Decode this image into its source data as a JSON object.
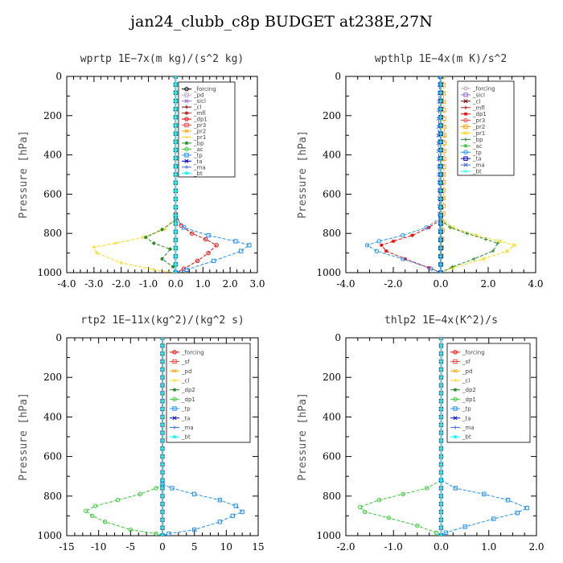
{
  "title": "jan24_clubb_c8p  BUDGET at238E,27N",
  "chart_data": [
    {
      "type": "line",
      "title": "wprtp  1E−7x(m kg)/(s^2 kg)",
      "ylabel": "Pressure [hPa]",
      "xlim": [
        -4.0,
        3.0
      ],
      "ylim": [
        0,
        1000
      ],
      "y_inverted": true,
      "xticks": [
        "-4.0",
        "-3.0",
        "-2.0",
        "-1.0",
        "0.0",
        "1.0",
        "2.0",
        "3.0"
      ],
      "yticks": [
        "0",
        "200",
        "400",
        "600",
        "800",
        "1000"
      ],
      "legend_position": "top-right",
      "series": [
        {
          "name": "_forcing",
          "color": "#000000",
          "marker": "o",
          "x": [
            0,
            0
          ],
          "y": [
            0,
            1000
          ]
        },
        {
          "name": "_pd",
          "color": "#c8a2c8",
          "marker": "s",
          "x": [
            0,
            0
          ],
          "y": [
            0,
            1000
          ]
        },
        {
          "name": "_sicl",
          "color": "#9370db",
          "marker": "x",
          "x": [
            0,
            0
          ],
          "y": [
            0,
            1000
          ]
        },
        {
          "name": "_cl",
          "color": "#800000",
          "marker": "+",
          "x": [
            0,
            0
          ],
          "y": [
            0,
            1000
          ]
        },
        {
          "name": "_mfl",
          "color": "#b22222",
          "marker": "*",
          "x": [
            0,
            0
          ],
          "y": [
            0,
            1000
          ]
        },
        {
          "name": "_dp1",
          "color": "#ff0000",
          "marker": "o",
          "x": [
            0,
            0.2,
            0.6,
            1.1,
            1.5,
            1.2,
            0.8,
            0.3,
            0
          ],
          "y": [
            700,
            760,
            800,
            830,
            860,
            900,
            940,
            980,
            1000
          ]
        },
        {
          "name": "_pr3",
          "color": "#ff4040",
          "marker": "s",
          "x": [
            0,
            0
          ],
          "y": [
            0,
            1000
          ]
        },
        {
          "name": "_pr2",
          "color": "#ffa500",
          "marker": "x",
          "x": [
            0,
            0
          ],
          "y": [
            0,
            1000
          ]
        },
        {
          "name": "_pr1",
          "color": "#ffd700",
          "marker": "+",
          "x": [
            0,
            -0.4,
            -1.2,
            -2.2,
            -3.0,
            -2.9,
            -2.0,
            -0.8,
            0
          ],
          "y": [
            720,
            780,
            820,
            850,
            870,
            900,
            950,
            985,
            1000
          ]
        },
        {
          "name": "_bp",
          "color": "#228b22",
          "marker": "*",
          "x": [
            0,
            -0.5,
            -1.1,
            -0.8,
            -0.2,
            -0.5,
            -0.1,
            0
          ],
          "y": [
            730,
            780,
            820,
            850,
            880,
            930,
            970,
            1000
          ]
        },
        {
          "name": "_ac",
          "color": "#32cd32",
          "marker": "o",
          "x": [
            0,
            0
          ],
          "y": [
            0,
            1000
          ]
        },
        {
          "name": "_tp",
          "color": "#1e90ff",
          "marker": "s",
          "x": [
            0,
            0.3,
            1.2,
            2.2,
            2.7,
            2.4,
            1.4,
            0.4,
            0
          ],
          "y": [
            720,
            770,
            810,
            840,
            860,
            890,
            940,
            985,
            1000
          ]
        },
        {
          "name": "_ta",
          "color": "#0000cd",
          "marker": "x",
          "x": [
            0,
            0
          ],
          "y": [
            0,
            1000
          ]
        },
        {
          "name": "_ma",
          "color": "#4169e1",
          "marker": "+",
          "x": [
            0,
            0
          ],
          "y": [
            0,
            1000
          ]
        },
        {
          "name": "_bt",
          "color": "#00ffff",
          "marker": "*",
          "x": [
            0,
            0
          ],
          "y": [
            0,
            1000
          ]
        }
      ]
    },
    {
      "type": "line",
      "title": "wpthlp  1E−4x(m K)/s^2",
      "ylabel": "Pressure [hPa]",
      "xlim": [
        -4.0,
        4.0
      ],
      "ylim": [
        0,
        1000
      ],
      "y_inverted": true,
      "xticks": [
        "-4.0",
        "-2.0",
        "0.0",
        "2.0",
        "4.0"
      ],
      "yticks": [
        "0",
        "200",
        "400",
        "600",
        "800",
        "1000"
      ],
      "legend_position": "top-right",
      "series": [
        {
          "name": "_forcing",
          "color": "#c8a2c8",
          "marker": "o",
          "x": [
            0,
            0
          ],
          "y": [
            0,
            1000
          ]
        },
        {
          "name": "_sicl",
          "color": "#9370db",
          "marker": "s",
          "x": [
            0,
            0
          ],
          "y": [
            0,
            1000
          ]
        },
        {
          "name": "_cl",
          "color": "#800000",
          "marker": "x",
          "x": [
            0,
            0
          ],
          "y": [
            0,
            1000
          ]
        },
        {
          "name": "_mfl",
          "color": "#b22222",
          "marker": "+",
          "x": [
            0,
            0
          ],
          "y": [
            0,
            1000
          ]
        },
        {
          "name": "_dp1",
          "color": "#ff0000",
          "marker": "*",
          "x": [
            0,
            -0.5,
            -1.2,
            -2.0,
            -2.5,
            -2.3,
            -1.5,
            -0.5,
            0
          ],
          "y": [
            730,
            770,
            810,
            840,
            860,
            890,
            930,
            975,
            1000
          ]
        },
        {
          "name": "_pr3",
          "color": "#ff4040",
          "marker": "o",
          "x": [
            0,
            0
          ],
          "y": [
            0,
            1000
          ]
        },
        {
          "name": "_pr2",
          "color": "#ffa500",
          "marker": "s",
          "x": [
            0.1,
            0.15,
            0.1,
            0
          ],
          "y": [
            0,
            300,
            700,
            1000
          ]
        },
        {
          "name": "_pr1",
          "color": "#ffd700",
          "marker": "x",
          "x": [
            0,
            0.5,
            1.5,
            2.5,
            3.1,
            2.8,
            1.8,
            0.5,
            0
          ],
          "y": [
            720,
            770,
            810,
            840,
            860,
            890,
            930,
            975,
            1000
          ]
        },
        {
          "name": "_bp",
          "color": "#228b22",
          "marker": "+",
          "x": [
            0,
            0.4,
            1.1,
            1.9,
            2.4,
            2.2,
            1.4,
            0.5,
            0
          ],
          "y": [
            730,
            770,
            800,
            830,
            850,
            890,
            930,
            970,
            1000
          ]
        },
        {
          "name": "_ac",
          "color": "#32cd32",
          "marker": "*",
          "x": [
            0,
            0
          ],
          "y": [
            0,
            1000
          ]
        },
        {
          "name": "_tp",
          "color": "#1e90ff",
          "marker": "o",
          "x": [
            0,
            -0.6,
            -1.6,
            -2.6,
            -3.1,
            -2.7,
            -1.6,
            -0.4,
            0
          ],
          "y": [
            720,
            770,
            810,
            840,
            860,
            890,
            930,
            980,
            1000
          ]
        },
        {
          "name": "_ta",
          "color": "#0000cd",
          "marker": "s",
          "x": [
            0,
            0
          ],
          "y": [
            0,
            1000
          ]
        },
        {
          "name": "_ma",
          "color": "#4169e1",
          "marker": "x",
          "x": [
            -0.05,
            -0.1,
            -0.05,
            0
          ],
          "y": [
            0,
            300,
            700,
            1000
          ]
        },
        {
          "name": "_bt",
          "color": "#00ffff",
          "marker": "+",
          "x": [
            0,
            0
          ],
          "y": [
            0,
            1000
          ]
        }
      ]
    },
    {
      "type": "line",
      "title": "rtp2  1E−11x(kg^2)/(kg^2 s)",
      "ylabel": "Pressure [hPa]",
      "xlim": [
        -15,
        15
      ],
      "ylim": [
        0,
        1000
      ],
      "y_inverted": true,
      "xticks": [
        "-15",
        "-10",
        "-5",
        "0",
        "5",
        "10",
        "15"
      ],
      "yticks": [
        "0",
        "200",
        "400",
        "600",
        "800",
        "1000"
      ],
      "legend_position": "top-right",
      "series": [
        {
          "name": "_forcing",
          "color": "#ff0000",
          "marker": "o",
          "x": [
            0,
            0
          ],
          "y": [
            0,
            1000
          ]
        },
        {
          "name": "_sf",
          "color": "#ff4040",
          "marker": "s",
          "x": [
            0,
            0
          ],
          "y": [
            0,
            1000
          ]
        },
        {
          "name": "_pd",
          "color": "#ffa500",
          "marker": "x",
          "x": [
            0,
            0
          ],
          "y": [
            0,
            1000
          ]
        },
        {
          "name": "_cl",
          "color": "#ffd700",
          "marker": "+",
          "x": [
            0,
            0
          ],
          "y": [
            0,
            1000
          ]
        },
        {
          "name": "_dp2",
          "color": "#228b22",
          "marker": "*",
          "x": [
            0,
            0
          ],
          "y": [
            0,
            1000
          ]
        },
        {
          "name": "_dp1",
          "color": "#32cd32",
          "marker": "o",
          "x": [
            0,
            -1,
            -3.5,
            -7,
            -10.5,
            -12,
            -11,
            -9,
            -5,
            -1,
            0
          ],
          "y": [
            740,
            760,
            790,
            820,
            850,
            875,
            900,
            930,
            970,
            990,
            1000
          ]
        },
        {
          "name": "_tp",
          "color": "#1e90ff",
          "marker": "s",
          "x": [
            0,
            1.5,
            5,
            9,
            11.5,
            12.5,
            11,
            9,
            5,
            1,
            0
          ],
          "y": [
            740,
            760,
            790,
            820,
            850,
            880,
            900,
            930,
            970,
            990,
            1000
          ]
        },
        {
          "name": "_ta",
          "color": "#0000cd",
          "marker": "x",
          "x": [
            0,
            0
          ],
          "y": [
            0,
            1000
          ]
        },
        {
          "name": "_ma",
          "color": "#4169e1",
          "marker": "+",
          "x": [
            0,
            0
          ],
          "y": [
            0,
            1000
          ]
        },
        {
          "name": "_bt",
          "color": "#00ffff",
          "marker": "*",
          "x": [
            0,
            0
          ],
          "y": [
            0,
            1000
          ]
        }
      ]
    },
    {
      "type": "line",
      "title": "thlp2  1E−4x(K^2)/s",
      "ylabel": "Pressure [hPa]",
      "xlim": [
        -2.0,
        2.0
      ],
      "ylim": [
        0,
        1000
      ],
      "y_inverted": true,
      "xticks": [
        "-2.0",
        "-1.0",
        "0.0",
        "1.0",
        "2.0"
      ],
      "yticks": [
        "0",
        "200",
        "400",
        "600",
        "800",
        "1000"
      ],
      "legend_position": "top-right",
      "series": [
        {
          "name": "_forcing",
          "color": "#ff0000",
          "marker": "o",
          "x": [
            0,
            0
          ],
          "y": [
            0,
            1000
          ]
        },
        {
          "name": "_sf",
          "color": "#ff4040",
          "marker": "s",
          "x": [
            0,
            0
          ],
          "y": [
            0,
            1000
          ]
        },
        {
          "name": "_pd",
          "color": "#ffa500",
          "marker": "x",
          "x": [
            0,
            0
          ],
          "y": [
            0,
            1000
          ]
        },
        {
          "name": "_cl",
          "color": "#ffd700",
          "marker": "+",
          "x": [
            0,
            0
          ],
          "y": [
            0,
            1000
          ]
        },
        {
          "name": "_dp2",
          "color": "#228b22",
          "marker": "*",
          "x": [
            0,
            0
          ],
          "y": [
            0,
            1000
          ]
        },
        {
          "name": "_dp1",
          "color": "#32cd32",
          "marker": "o",
          "x": [
            0,
            -0.3,
            -0.8,
            -1.3,
            -1.7,
            -1.6,
            -1.1,
            -0.5,
            -0.1,
            0
          ],
          "y": [
            720,
            760,
            790,
            820,
            855,
            880,
            910,
            950,
            985,
            1000
          ]
        },
        {
          "name": "_tp",
          "color": "#1e90ff",
          "marker": "s",
          "x": [
            0,
            0.3,
            0.9,
            1.4,
            1.8,
            1.6,
            1.1,
            0.5,
            0.1,
            0
          ],
          "y": [
            720,
            760,
            790,
            820,
            860,
            885,
            915,
            955,
            985,
            1000
          ]
        },
        {
          "name": "_ta",
          "color": "#0000cd",
          "marker": "x",
          "x": [
            0,
            0
          ],
          "y": [
            0,
            1000
          ]
        },
        {
          "name": "_ma",
          "color": "#4169e1",
          "marker": "+",
          "x": [
            0,
            0
          ],
          "y": [
            0,
            1000
          ]
        },
        {
          "name": "_bt",
          "color": "#00ffff",
          "marker": "*",
          "x": [
            0,
            0
          ],
          "y": [
            0,
            1000
          ]
        }
      ]
    }
  ]
}
